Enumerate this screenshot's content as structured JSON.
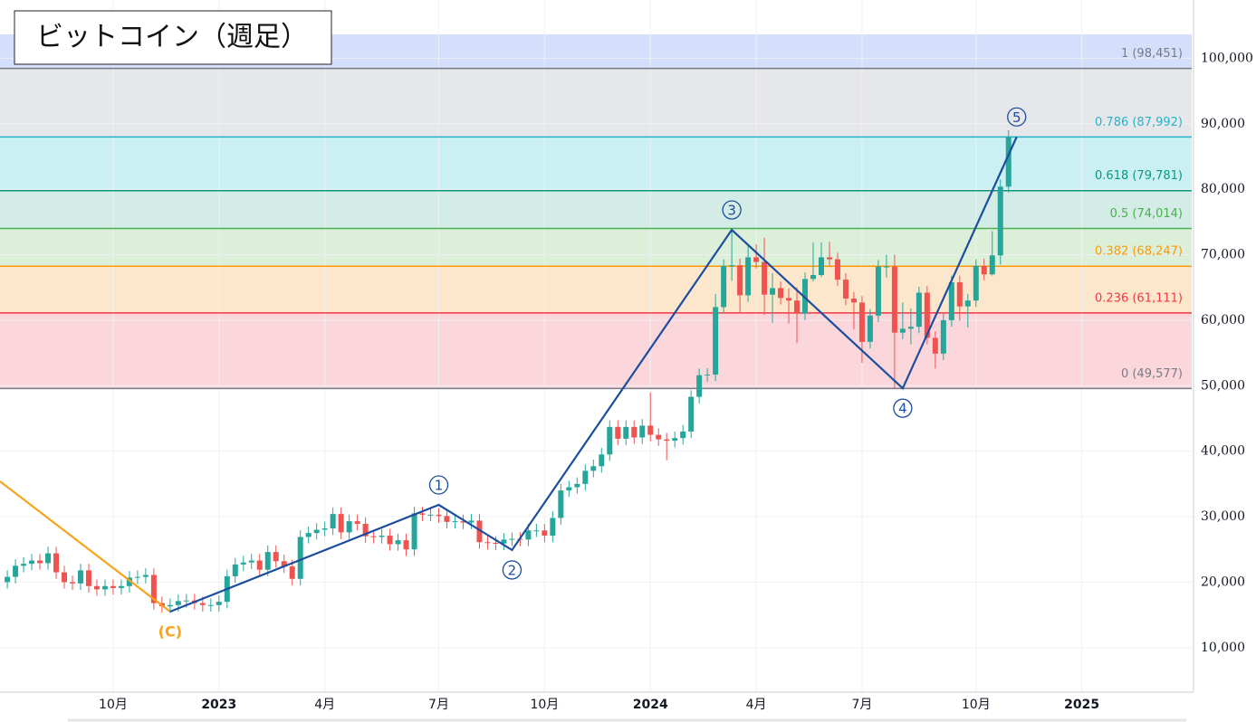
{
  "chart_data": {
    "type": "candlestick",
    "title": "ビットコイン（週足）",
    "xlim": [
      -0.9,
      145.5
    ],
    "ylim": [
      3200,
      108900
    ],
    "yticks": [
      {
        "value": 10000,
        "label": "10,000"
      },
      {
        "value": 20000,
        "label": "20,000"
      },
      {
        "value": 30000,
        "label": "30,000"
      },
      {
        "value": 40000,
        "label": "40,000"
      },
      {
        "value": 50000,
        "label": "50,000"
      },
      {
        "value": 60000,
        "label": "60,000"
      },
      {
        "value": 70000,
        "label": "70,000"
      },
      {
        "value": 80000,
        "label": "80,000"
      },
      {
        "value": 90000,
        "label": "90,000"
      },
      {
        "value": 100000,
        "label": "100,000"
      }
    ],
    "xticks": [
      {
        "value": 13,
        "label": "10月"
      },
      {
        "value": 26,
        "label": "2023"
      },
      {
        "value": 39,
        "label": "4月"
      },
      {
        "value": 53,
        "label": "7月"
      },
      {
        "value": 66,
        "label": "10月"
      },
      {
        "value": 79,
        "label": "2024"
      },
      {
        "value": 92,
        "label": "4月"
      },
      {
        "value": 105,
        "label": "7月"
      },
      {
        "value": 119,
        "label": "10月"
      },
      {
        "value": 132,
        "label": "2025"
      }
    ],
    "grid": true,
    "up_color": "#26a69a",
    "down_color": "#ef5350",
    "candles": {
      "open": [
        20000,
        20800,
        22500,
        22800,
        23300,
        22900,
        24400,
        21500,
        20000,
        19800,
        21800,
        19400,
        18900,
        19400,
        19100,
        19400,
        20700,
        20800,
        21100,
        16800,
        16300,
        16500,
        17100,
        17200,
        16800,
        16500,
        16500,
        17000,
        20900,
        22700,
        23000,
        23300,
        21900,
        24600,
        23200,
        22400,
        20500,
        26900,
        27500,
        28000,
        28200,
        30400,
        27600,
        29300,
        28900,
        27000,
        26900,
        27100,
        25800,
        26400,
        25000,
        30500,
        30300,
        30300,
        30100,
        29200,
        29300,
        29100,
        29400,
        26100,
        26000,
        25900,
        26500,
        26600,
        26500,
        27900,
        27900,
        27100,
        29800,
        34000,
        34500,
        35000,
        37000,
        37700,
        39500,
        43700,
        41900,
        43700,
        42100,
        43900,
        42500,
        41800,
        41600,
        42000,
        43000,
        48300,
        51600,
        51700,
        62000,
        68300,
        68400,
        63800,
        69600,
        68900,
        63900,
        64900,
        63400,
        63000,
        61000,
        66300,
        66900,
        69600,
        69300,
        66200,
        63300,
        62700,
        56700,
        60700,
        68200,
        68200,
        58100,
        58700,
        59000,
        64200,
        57300,
        54900,
        60000,
        65800,
        62100,
        63000,
        68300,
        67000,
        69900,
        80400
      ],
      "high": [
        21800,
        23500,
        23800,
        24300,
        24300,
        25400,
        25400,
        22500,
        21000,
        22800,
        22800,
        20400,
        20400,
        20400,
        20400,
        21700,
        21800,
        22100,
        22100,
        17800,
        17500,
        18100,
        18200,
        18200,
        17800,
        17500,
        18000,
        21900,
        23700,
        24000,
        24300,
        24300,
        25600,
        25600,
        24200,
        23400,
        27900,
        28500,
        29000,
        29200,
        31400,
        31400,
        30300,
        30300,
        29900,
        28000,
        28100,
        28100,
        27400,
        27400,
        31500,
        31500,
        31300,
        31300,
        31100,
        30300,
        30300,
        30400,
        30400,
        27100,
        27000,
        27500,
        27600,
        27600,
        28900,
        28900,
        28900,
        30800,
        35000,
        35500,
        36000,
        38000,
        38700,
        40500,
        44700,
        44700,
        44700,
        44700,
        44900,
        49000,
        43500,
        42800,
        43000,
        44000,
        49300,
        52600,
        52700,
        64000,
        69300,
        73800,
        69400,
        71600,
        71600,
        72600,
        67200,
        65900,
        64900,
        65000,
        67300,
        71900,
        71900,
        72000,
        70300,
        67200,
        64300,
        63700,
        61700,
        69200,
        70000,
        70000,
        62700,
        61800,
        65100,
        65200,
        58300,
        61000,
        66800,
        66800,
        64000,
        69300,
        69400,
        73600,
        81500,
        89000
      ],
      "low": [
        19000,
        19800,
        21500,
        21800,
        21900,
        21900,
        20500,
        19000,
        18800,
        18800,
        18400,
        17900,
        17900,
        18100,
        18100,
        18400,
        19700,
        19800,
        15800,
        15300,
        15300,
        15500,
        16100,
        15800,
        15500,
        15500,
        15500,
        16000,
        19900,
        21700,
        22000,
        20900,
        20900,
        22200,
        21400,
        19500,
        19500,
        25900,
        26500,
        27000,
        27200,
        26600,
        26600,
        27900,
        26000,
        25900,
        25900,
        24800,
        24800,
        24000,
        24000,
        29300,
        29300,
        29100,
        28200,
        28200,
        28100,
        28100,
        25100,
        25000,
        24900,
        24900,
        25500,
        25500,
        25500,
        26900,
        26100,
        26100,
        28800,
        33000,
        33500,
        34000,
        36000,
        36700,
        38500,
        40900,
        40900,
        41100,
        41100,
        41500,
        40800,
        38600,
        40600,
        41000,
        42000,
        47300,
        50600,
        50700,
        61000,
        66000,
        61000,
        62800,
        67900,
        60800,
        59600,
        62400,
        59500,
        56500,
        60000,
        65900,
        66600,
        68300,
        65200,
        62300,
        58600,
        53500,
        55700,
        59700,
        66500,
        49600,
        57100,
        56300,
        58000,
        56300,
        52600,
        53900,
        59000,
        59900,
        58900,
        62000,
        66100,
        66800,
        68500,
        79500
      ],
      "close": [
        20800,
        22500,
        22800,
        23300,
        22900,
        24400,
        21500,
        20000,
        19800,
        21800,
        19400,
        18900,
        19400,
        19100,
        19400,
        20700,
        20800,
        21100,
        16800,
        16300,
        16500,
        17100,
        17200,
        16800,
        16500,
        16500,
        17000,
        20900,
        22700,
        23000,
        23300,
        21900,
        24600,
        23200,
        22400,
        20500,
        26900,
        27500,
        28000,
        28200,
        30400,
        27600,
        29300,
        28900,
        27000,
        26900,
        27100,
        25800,
        26400,
        25000,
        30500,
        30300,
        30300,
        30100,
        29200,
        29300,
        29100,
        29400,
        26100,
        26000,
        25900,
        26500,
        26600,
        26500,
        27900,
        27900,
        27100,
        29800,
        34000,
        34500,
        35000,
        37000,
        37700,
        39500,
        43700,
        41900,
        43700,
        42100,
        43900,
        42500,
        41800,
        41600,
        42000,
        43000,
        48300,
        51600,
        51700,
        62000,
        68300,
        68400,
        63800,
        69600,
        68900,
        63900,
        64900,
        63400,
        63000,
        61000,
        66300,
        66900,
        69600,
        69300,
        66200,
        63300,
        62700,
        56700,
        60700,
        68200,
        68200,
        58100,
        58700,
        59000,
        64200,
        57300,
        54900,
        60000,
        65800,
        62100,
        63000,
        68300,
        67000,
        69900,
        80400,
        88000
      ]
    },
    "fibonacci": [
      {
        "label": "1 (98,451)",
        "value": 98451,
        "color": "#787b86",
        "fill": "#e6e7ea"
      },
      {
        "label": "0.786 (87,992)",
        "value": 87992,
        "color": "#22b5c9",
        "fill": "#cbf0f3"
      },
      {
        "label": "0.618 (79,781)",
        "value": 79781,
        "color": "#089981",
        "fill": "#d3ece6"
      },
      {
        "label": "0.5 (74,014)",
        "value": 74014,
        "color": "#4caf50",
        "fill": "#dcf0d9"
      },
      {
        "label": "0.382 (68,247)",
        "value": 68247,
        "color": "#ff9800",
        "fill": "#fde7cc"
      },
      {
        "label": "0.236 (61,111)",
        "value": 61111,
        "color": "#f23645",
        "fill": "#fbd7db"
      },
      {
        "label": "0 (49,577)",
        "value": 49577,
        "color": "#787b86"
      }
    ],
    "prior_wave": {
      "color": "#f7a31c",
      "x": [
        -0.9,
        20
      ],
      "y": [
        35400,
        15500
      ],
      "labels": [
        null,
        "(C)"
      ]
    },
    "wave": {
      "color": "#1c4d9e",
      "x": [
        20,
        53,
        62,
        89,
        110,
        124
      ],
      "y": [
        15500,
        31800,
        24900,
        73800,
        49600,
        88000
      ],
      "labels": [
        null,
        "1",
        "2",
        "3",
        "4",
        "5"
      ]
    }
  }
}
